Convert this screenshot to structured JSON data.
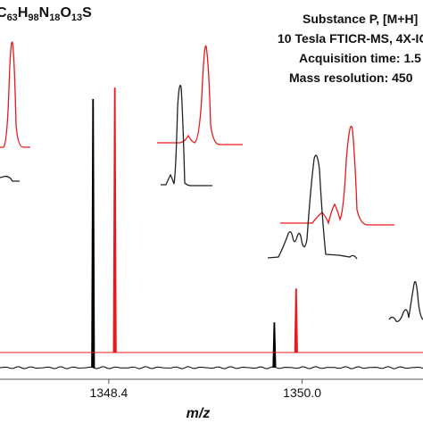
{
  "chart_data": {
    "type": "line",
    "formula": {
      "prefix": "C",
      "c_sub": "63",
      "h": "H",
      "h_sub": "98",
      "n": "N",
      "n_sub": "18",
      "o": "O",
      "o_sub": "13",
      "s": "S"
    },
    "annotations": [
      "Substance P, [M+H]",
      "10 Tesla FTICR-MS, 4X-IC",
      "Acquisition time: 1.5",
      "Mass resolution: 450"
    ],
    "xlabel": "m/z",
    "x_ticks": [
      1348.4,
      1350.0
    ],
    "x_tick_labels": [
      "1348.4",
      "1350.0"
    ],
    "xlim": [
      1347.5,
      1351.0
    ],
    "ylim": [
      0,
      1.0
    ],
    "colors": {
      "black": "#000000",
      "red": "#e8191c"
    },
    "series": [
      {
        "color": "#000000",
        "peaks": [
          {
            "x": 1348.27,
            "y": 0.95
          },
          {
            "x": 1349.77,
            "y": 0.16
          }
        ]
      },
      {
        "color": "#e8191c",
        "peaks": [
          {
            "x": 1348.45,
            "y": 0.99
          },
          {
            "x": 1349.95,
            "y": 0.28
          }
        ]
      }
    ]
  }
}
